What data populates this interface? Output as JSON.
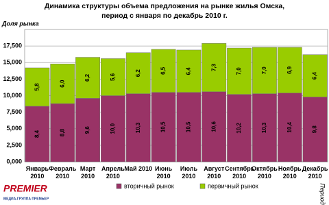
{
  "chart_data": {
    "type": "stacked_bar",
    "title": [
      "Динамика  структуры объема предложения на рынке жилья Омска,",
      "период с января по декабрь 2010 г."
    ],
    "ylabel": "Доля рынка",
    "xlabel": "Период",
    "categories": [
      "Январь 2010",
      "Февраль 2010",
      "Март 2010",
      "Апрель 2010",
      "Май 2010",
      "Июнь 2010",
      "Июль 2010",
      "Август 2010",
      "Сентябрь 2010",
      "Октябрь 2010",
      "Ноябрь 2010",
      "Декабрь 2010"
    ],
    "series": [
      {
        "name": "вторичный рынок",
        "color": "#993366",
        "values": [
          8400,
          8800,
          9600,
          10000,
          10300,
          10500,
          10500,
          10600,
          10200,
          10300,
          10400,
          9800
        ],
        "value_labels": [
          "8,4",
          "8,8",
          "9,6",
          "10,0",
          "10,3",
          "10,5",
          "10,5",
          "10,6",
          "10,2",
          "10,3",
          "10,4",
          "9,8"
        ]
      },
      {
        "name": "первичный рынок",
        "color": "#99cc00",
        "values": [
          5800,
          6000,
          6200,
          5600,
          6200,
          6500,
          6400,
          7300,
          7000,
          7000,
          6900,
          6400
        ],
        "value_labels": [
          "5,8",
          "6,0",
          "6,2",
          "5,6",
          "6,2",
          "6,5",
          "6,4",
          "7,3",
          "7,0",
          "7,0",
          "6,9",
          "6,4"
        ]
      }
    ],
    "ylim": [
      0,
      20000
    ],
    "yticks": [
      {
        "value": 0,
        "label": "0,000"
      },
      {
        "value": 2500,
        "label": "2,500"
      },
      {
        "value": 5000,
        "label": "5,000"
      },
      {
        "value": 7500,
        "label": "7,500"
      },
      {
        "value": 10000,
        "label": "10,000"
      },
      {
        "value": 12500,
        "label": "12,500"
      },
      {
        "value": 15000,
        "label": "15,000"
      },
      {
        "value": 17500,
        "label": "17,500"
      }
    ],
    "grid": true,
    "legend": "bottom"
  },
  "logo": {
    "name": "PREMIER",
    "tagline": "медиа-группа ПРЕМЬЕР"
  }
}
